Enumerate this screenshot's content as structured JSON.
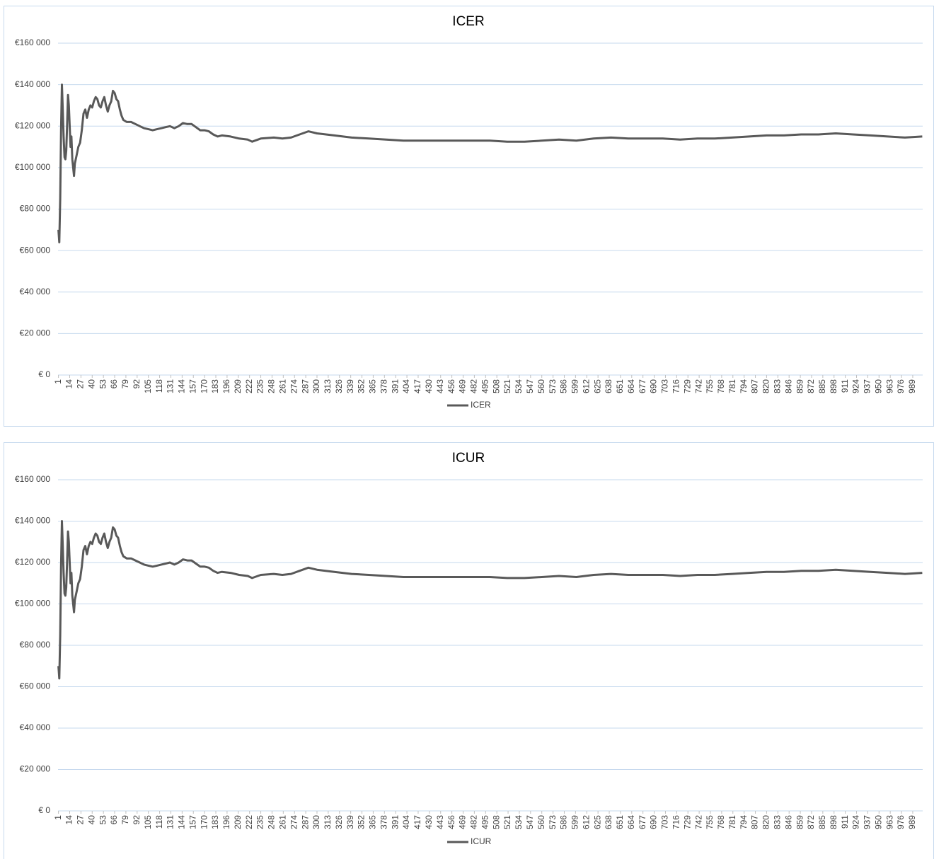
{
  "chart_data": [
    {
      "type": "line",
      "title": "ICER",
      "x": [
        1,
        2,
        3,
        4,
        5,
        6,
        7,
        8,
        9,
        10,
        11,
        12,
        13,
        14,
        15,
        16,
        17,
        18,
        19,
        20,
        22,
        24,
        26,
        28,
        30,
        32,
        34,
        36,
        38,
        40,
        42,
        44,
        46,
        48,
        50,
        52,
        54,
        56,
        58,
        60,
        62,
        64,
        66,
        68,
        70,
        72,
        74,
        76,
        80,
        85,
        90,
        95,
        100,
        105,
        110,
        115,
        120,
        125,
        130,
        135,
        140,
        145,
        150,
        155,
        160,
        165,
        170,
        175,
        180,
        185,
        190,
        200,
        210,
        220,
        225,
        235,
        250,
        260,
        270,
        280,
        290,
        300,
        320,
        340,
        360,
        380,
        400,
        420,
        440,
        460,
        480,
        500,
        520,
        540,
        560,
        580,
        600,
        620,
        640,
        660,
        680,
        700,
        720,
        740,
        760,
        780,
        800,
        820,
        840,
        860,
        880,
        900,
        920,
        940,
        960,
        980,
        1000
      ],
      "series": [
        {
          "name": "ICER",
          "color": "#595959",
          "values": [
            70000,
            64000,
            85000,
            118000,
            140000,
            128000,
            115000,
            105000,
            104000,
            108000,
            120000,
            135000,
            130000,
            120000,
            110000,
            115000,
            104000,
            100000,
            96000,
            102000,
            106000,
            110000,
            112000,
            118000,
            126000,
            128000,
            124000,
            128000,
            130000,
            129000,
            132000,
            134000,
            133000,
            130000,
            129000,
            132000,
            134000,
            130000,
            127000,
            130000,
            132000,
            137000,
            136000,
            133000,
            132000,
            128000,
            125000,
            123000,
            122000,
            122000,
            121000,
            120000,
            119000,
            118500,
            118000,
            118500,
            119000,
            119500,
            120000,
            119000,
            120000,
            121500,
            121000,
            121000,
            119500,
            118000,
            118000,
            117500,
            116000,
            115000,
            115500,
            115000,
            114000,
            113500,
            112500,
            114000,
            114500,
            114000,
            114500,
            116000,
            117500,
            116500,
            115500,
            114500,
            114000,
            113500,
            113000,
            113000,
            113000,
            113000,
            113000,
            113000,
            112500,
            112500,
            113000,
            113500,
            113000,
            114000,
            114500,
            114000,
            114000,
            114000,
            113500,
            114000,
            114000,
            114500,
            115000,
            115500,
            115500,
            116000,
            116000,
            116500,
            116000,
            115500,
            115000,
            114500,
            115000
          ]
        }
      ],
      "xlim": [
        0.5,
        1000.5
      ],
      "xticks": [
        1,
        14,
        27,
        40,
        53,
        66,
        79,
        92,
        105,
        118,
        131,
        144,
        157,
        170,
        183,
        196,
        209,
        222,
        235,
        248,
        261,
        274,
        287,
        300,
        313,
        326,
        339,
        352,
        365,
        378,
        391,
        404,
        417,
        430,
        443,
        456,
        469,
        482,
        495,
        508,
        521,
        534,
        547,
        560,
        573,
        586,
        599,
        612,
        625,
        638,
        651,
        664,
        677,
        690,
        703,
        716,
        729,
        742,
        755,
        768,
        781,
        794,
        807,
        820,
        833,
        846,
        859,
        872,
        885,
        898,
        911,
        924,
        937,
        950,
        963,
        976,
        989
      ],
      "ylim": [
        0,
        160000
      ],
      "yticks": [
        {
          "value": 0,
          "label": "€ 0"
        },
        {
          "value": 20000,
          "label": "€20 000"
        },
        {
          "value": 40000,
          "label": "€40 000"
        },
        {
          "value": 60000,
          "label": "€60 000"
        },
        {
          "value": 80000,
          "label": "€80 000"
        },
        {
          "value": 100000,
          "label": "€100 000"
        },
        {
          "value": 120000,
          "label": "€120 000"
        },
        {
          "value": 140000,
          "label": "€140 000"
        },
        {
          "value": 160000,
          "label": "€160 000"
        }
      ],
      "grid": true,
      "legend": "bottom"
    },
    {
      "type": "line",
      "title": "ICUR",
      "x": [
        1,
        2,
        3,
        4,
        5,
        6,
        7,
        8,
        9,
        10,
        11,
        12,
        13,
        14,
        15,
        16,
        17,
        18,
        19,
        20,
        22,
        24,
        26,
        28,
        30,
        32,
        34,
        36,
        38,
        40,
        42,
        44,
        46,
        48,
        50,
        52,
        54,
        56,
        58,
        60,
        62,
        64,
        66,
        68,
        70,
        72,
        74,
        76,
        80,
        85,
        90,
        95,
        100,
        105,
        110,
        115,
        120,
        125,
        130,
        135,
        140,
        145,
        150,
        155,
        160,
        165,
        170,
        175,
        180,
        185,
        190,
        200,
        210,
        220,
        225,
        235,
        250,
        260,
        270,
        280,
        290,
        300,
        320,
        340,
        360,
        380,
        400,
        420,
        440,
        460,
        480,
        500,
        520,
        540,
        560,
        580,
        600,
        620,
        640,
        660,
        680,
        700,
        720,
        740,
        760,
        780,
        800,
        820,
        840,
        860,
        880,
        900,
        920,
        940,
        960,
        980,
        1000
      ],
      "series": [
        {
          "name": "ICUR",
          "color": "#595959",
          "values": [
            70000,
            64000,
            85000,
            118000,
            140000,
            128000,
            115000,
            105000,
            104000,
            108000,
            120000,
            135000,
            130000,
            120000,
            110000,
            115000,
            104000,
            100000,
            96000,
            102000,
            106000,
            110000,
            112000,
            118000,
            126000,
            128000,
            124000,
            128000,
            130000,
            129000,
            132000,
            134000,
            133000,
            130000,
            129000,
            132000,
            134000,
            130000,
            127000,
            130000,
            132000,
            137000,
            136000,
            133000,
            132000,
            128000,
            125000,
            123000,
            122000,
            122000,
            121000,
            120000,
            119000,
            118500,
            118000,
            118500,
            119000,
            119500,
            120000,
            119000,
            120000,
            121500,
            121000,
            121000,
            119500,
            118000,
            118000,
            117500,
            116000,
            115000,
            115500,
            115000,
            114000,
            113500,
            112500,
            114000,
            114500,
            114000,
            114500,
            116000,
            117500,
            116500,
            115500,
            114500,
            114000,
            113500,
            113000,
            113000,
            113000,
            113000,
            113000,
            113000,
            112500,
            112500,
            113000,
            113500,
            113000,
            114000,
            114500,
            114000,
            114000,
            114000,
            113500,
            114000,
            114000,
            114500,
            115000,
            115500,
            115500,
            116000,
            116000,
            116500,
            116000,
            115500,
            115000,
            114500,
            115000
          ]
        }
      ],
      "xlim": [
        0.5,
        1000.5
      ],
      "xticks": [
        1,
        14,
        27,
        40,
        53,
        66,
        79,
        92,
        105,
        118,
        131,
        144,
        157,
        170,
        183,
        196,
        209,
        222,
        235,
        248,
        261,
        274,
        287,
        300,
        313,
        326,
        339,
        352,
        365,
        378,
        391,
        404,
        417,
        430,
        443,
        456,
        469,
        482,
        495,
        508,
        521,
        534,
        547,
        560,
        573,
        586,
        599,
        612,
        625,
        638,
        651,
        664,
        677,
        690,
        703,
        716,
        729,
        742,
        755,
        768,
        781,
        794,
        807,
        820,
        833,
        846,
        859,
        872,
        885,
        898,
        911,
        924,
        937,
        950,
        963,
        976,
        989
      ],
      "ylim": [
        0,
        160000
      ],
      "yticks": [
        {
          "value": 0,
          "label": "€ 0"
        },
        {
          "value": 20000,
          "label": "€20 000"
        },
        {
          "value": 40000,
          "label": "€40 000"
        },
        {
          "value": 60000,
          "label": "€60 000"
        },
        {
          "value": 80000,
          "label": "€80 000"
        },
        {
          "value": 100000,
          "label": "€100 000"
        },
        {
          "value": 120000,
          "label": "€120 000"
        },
        {
          "value": 140000,
          "label": "€140 000"
        },
        {
          "value": 160000,
          "label": "€160 000"
        }
      ],
      "grid": true,
      "legend": "bottom"
    }
  ]
}
